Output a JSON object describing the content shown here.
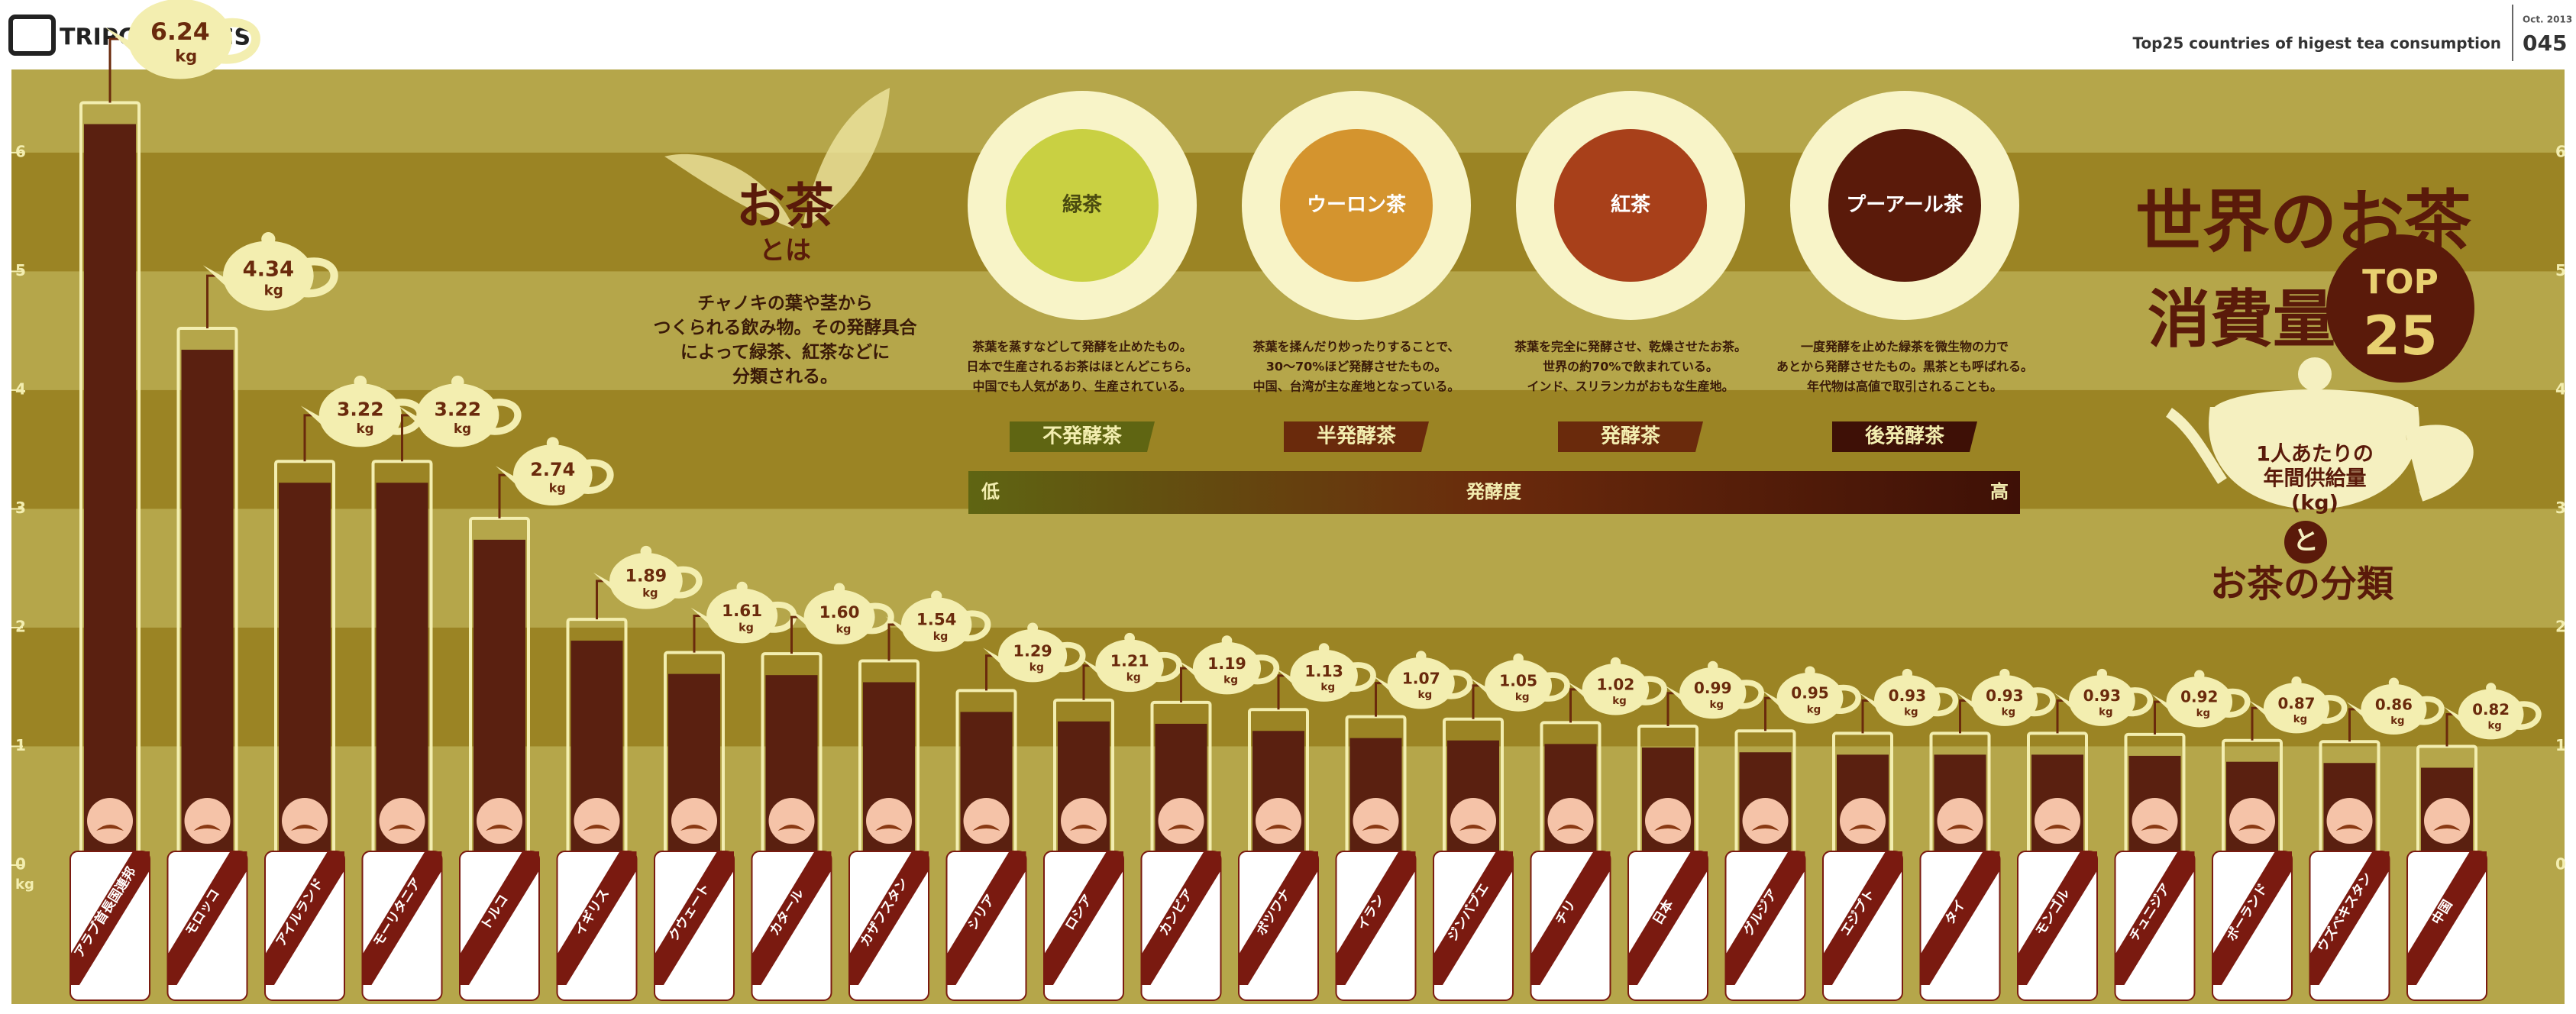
{
  "header": {
    "brand": "TRIPGRAPHICS",
    "subtitle": "Top25 countries of higest tea consumption",
    "date": "Oct. 2013",
    "number": "045"
  },
  "intro": {
    "title": "お茶",
    "subtitle": "とは",
    "lines": [
      "チャノキの葉や茎から",
      "つくられる飲み物。その発酵具合",
      "によって緑茶、紅茶などに",
      "分類される。"
    ]
  },
  "tea_types": [
    {
      "name": "緑茶",
      "color": "#c9d042",
      "kind": "不発酵茶",
      "lines": [
        "茶葉を蒸すなどして発酵を止めたもの。",
        "日本で生産されるお茶はほとんどこちら。",
        "中国でも人気があり、生産されている。"
      ]
    },
    {
      "name": "ウーロン茶",
      "color": "#d4942e",
      "kind": "半発酵茶",
      "lines": [
        "茶葉を揉んだり炒ったりすることで、",
        "30〜70%ほど発酵させたもの。",
        "中国、台湾が主な産地となっている。"
      ]
    },
    {
      "name": "紅茶",
      "color": "#a8401a",
      "kind": "発酵茶",
      "lines": [
        "茶葉を完全に発酵させ、乾燥させたお茶。",
        "世界の約70%で飲まれている。",
        "インド、スリランカがおもな生産地。"
      ]
    },
    {
      "name": "プーアール茶",
      "color": "#5a1a0a",
      "kind": "後発酵茶",
      "lines": [
        "一度発酵を止めた緑茶を微生物の力で",
        "あとから発酵させたもの。黒茶とも呼ばれる。",
        "年代物は高値で取引されることも。"
      ]
    }
  ],
  "fermentation": {
    "low": "低",
    "label": "発酵度",
    "high": "高"
  },
  "panel": {
    "title1": "世界のお茶",
    "title2": "消費量",
    "top": "TOP",
    "top_num": "25",
    "lines": [
      "1人あたりの",
      "年間供給量",
      "(kg)"
    ],
    "and": "と",
    "subtitle": "お茶の分類"
  },
  "chart_data": {
    "type": "bar",
    "unit": "kg",
    "y_label": "kg",
    "categories": [
      "アラブ首長国連邦",
      "モロッコ",
      "アイルランド",
      "モーリタニア",
      "トルコ",
      "イギリス",
      "クウェート",
      "カタール",
      "カザフスタン",
      "シリア",
      "ロシア",
      "カンビア",
      "ボツワナ",
      "イラン",
      "ジンバブエ",
      "チリ",
      "日本",
      "グルジア",
      "エジプト",
      "タイ",
      "モンゴル",
      "チュニジア",
      "ポーランド",
      "ウズベキスタン",
      "中国"
    ],
    "values": [
      6.24,
      4.34,
      3.22,
      3.22,
      2.74,
      1.89,
      1.61,
      1.6,
      1.54,
      1.29,
      1.21,
      1.19,
      1.13,
      1.07,
      1.05,
      1.02,
      0.99,
      0.95,
      0.93,
      0.93,
      0.93,
      0.92,
      0.87,
      0.86,
      0.82
    ],
    "value_labels": [
      "6.24",
      "4.34",
      "3.22",
      "3.22",
      "2.74",
      "1.89",
      "1.61",
      "1.60",
      "1.54",
      "1.29",
      "1.21",
      "1.19",
      "1.13",
      "1.07",
      "1.05",
      "1.02",
      "0.99",
      "0.95",
      "0.93",
      "0.93",
      "0.93",
      "0.92",
      "0.87",
      "0.86",
      "0.82"
    ],
    "color": "#5a2010",
    "ylim": [
      0,
      6.7
    ],
    "yticks": [
      0,
      1,
      2,
      3,
      4,
      5,
      6
    ]
  }
}
